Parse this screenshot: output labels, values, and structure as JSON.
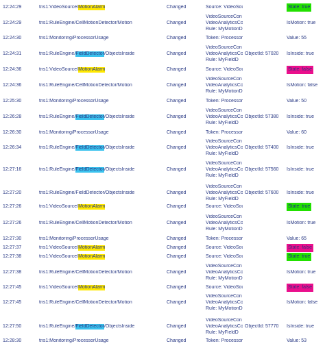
{
  "colors": {
    "text": "#2a3a85",
    "highlight_motion_alarm": "#ffe800",
    "highlight_field_detector": "#3bc2ee",
    "state_true": "#22e000",
    "state_false": "#ea0f8c"
  },
  "rows": [
    {
      "time": "12:24:29",
      "topic": [
        {
          "t": "tns1:VideoSource/"
        },
        {
          "t": "MotionAlarm",
          "hl": "yellow"
        }
      ],
      "event": "Changed",
      "source": [
        "Source: VideoSou"
      ],
      "objid": "",
      "value": "State: true",
      "badge": "green"
    },
    {
      "time": "12:24:29",
      "topic": [
        {
          "t": "tns1:RuleEngine/CellMotionDetector/Motion"
        }
      ],
      "event": "Changed",
      "source": [
        "VideoSourceCon",
        "VideoAnalyticsCo",
        "Rule: MyMotionD"
      ],
      "objid": "",
      "value": "IsMotion: true"
    },
    {
      "time": "12:24:30",
      "topic": [
        {
          "t": "tns1:Monitoring/ProcessorUsage"
        }
      ],
      "event": "Changed",
      "source": [
        "Token: Processor"
      ],
      "objid": "",
      "value": "Value: 55"
    },
    {
      "time": "12:24:31",
      "topic": [
        {
          "t": "tns1:RuleEngine/"
        },
        {
          "t": "FieldDetector",
          "hl": "blue"
        },
        {
          "t": "/ObjectsInside"
        }
      ],
      "event": "Changed",
      "source": [
        "VideoSourceCon",
        "VideoAnalyticsCo",
        "Rule: MyFieldD"
      ],
      "objid": "ObjectId: 57020",
      "value": "IsInside: true"
    },
    {
      "time": "12:24:36",
      "topic": [
        {
          "t": "tns1:VideoSource/"
        },
        {
          "t": "MotionAlarm",
          "hl": "yellow"
        }
      ],
      "event": "Changed",
      "source": [
        "Source: VideoSou"
      ],
      "objid": "",
      "value": "State: false",
      "badge": "pink"
    },
    {
      "time": "12:24:36",
      "topic": [
        {
          "t": "tns1:RuleEngine/CellMotionDetector/Motion"
        }
      ],
      "event": "Changed",
      "source": [
        "VideoSourceCon",
        "VideoAnalyticsCo",
        "Rule: MyMotionD"
      ],
      "objid": "",
      "value": "IsMotion: false"
    },
    {
      "time": "12:25:30",
      "topic": [
        {
          "t": "tns1:Monitoring/ProcessorUsage"
        }
      ],
      "event": "Changed",
      "source": [
        "Token: Processor"
      ],
      "objid": "",
      "value": "Value: 50"
    },
    {
      "time": "12:26:28",
      "topic": [
        {
          "t": "tns1:RuleEngine/"
        },
        {
          "t": "FieldDetector",
          "hl": "blue"
        },
        {
          "t": "/ObjectsInside"
        }
      ],
      "event": "Changed",
      "source": [
        "VideoSourceCon",
        "VideoAnalyticsCo",
        "Rule: MyFieldD"
      ],
      "objid": "ObjectId: 57380",
      "value": "IsInside: true"
    },
    {
      "time": "12:26:30",
      "topic": [
        {
          "t": "tns1:Monitoring/ProcessorUsage"
        }
      ],
      "event": "Changed",
      "source": [
        "Token: Processor"
      ],
      "objid": "",
      "value": "Value: 60"
    },
    {
      "time": "12:26:34",
      "topic": [
        {
          "t": "tns1:RuleEngine/"
        },
        {
          "t": "FieldDetector",
          "hl": "blue"
        },
        {
          "t": "/ObjectsInside"
        }
      ],
      "event": "Changed",
      "source": [
        "VideoSourceCon",
        "VideoAnalyticsCo",
        "Rule: MyFieldD"
      ],
      "objid": "ObjectId: 57400",
      "value": "IsInside: true"
    },
    {
      "time": "12:27:16",
      "topic": [
        {
          "t": "tns1:RuleEngine/"
        },
        {
          "t": "FieldDetector",
          "hl": "blue"
        },
        {
          "t": "/ObjectsInside"
        }
      ],
      "event": "Changed",
      "source": [
        "VideoSourceCon",
        "VideoAnalyticsCo",
        "Rule: MyFieldD"
      ],
      "objid": "ObjectId: 57560",
      "value": "IsInside: true"
    },
    {
      "time": "12:27:20",
      "topic": [
        {
          "t": "tns1:RuleEngine/FieldDetector/ObjectsInside"
        }
      ],
      "event": "Changed",
      "source": [
        "VideoSourceCon",
        "VideoAnalyticsCo",
        "Rule: MyFieldD"
      ],
      "objid": "ObjectId: 57600",
      "value": "IsInside: true"
    },
    {
      "time": "12:27:26",
      "topic": [
        {
          "t": "tns1:VideoSource/"
        },
        {
          "t": "MotionAlarm",
          "hl": "yellow"
        }
      ],
      "event": "Changed",
      "source": [
        "Source: VideoSou"
      ],
      "objid": "",
      "value": "State: true",
      "badge": "green"
    },
    {
      "time": "12:27:26",
      "topic": [
        {
          "t": "tns1:RuleEngine/CellMotionDetector/Motion"
        }
      ],
      "event": "Changed",
      "source": [
        "VideoSourceCon",
        "VideoAnalyticsCo",
        "Rule: MyMotionD"
      ],
      "objid": "",
      "value": "IsMotion: true"
    },
    {
      "time": "12:27:30",
      "topic": [
        {
          "t": "tns1:Monitoring/ProcessorUsage"
        }
      ],
      "event": "Changed",
      "source": [
        "Token: Processor"
      ],
      "objid": "",
      "value": "Value: 65"
    },
    {
      "time": "12:27:37",
      "topic": [
        {
          "t": "tns1:VideoSource/"
        },
        {
          "t": "MotionAlarm",
          "hl": "yellow"
        }
      ],
      "event": "Changed",
      "source": [
        "Source: VideoSou"
      ],
      "objid": "",
      "value": "State: false",
      "badge": "pink"
    },
    {
      "time": "12:27:38",
      "topic": [
        {
          "t": "tns1:VideoSource/"
        },
        {
          "t": "MotionAlarm",
          "hl": "yellow"
        }
      ],
      "event": "Changed",
      "source": [
        "Source: VideoSou"
      ],
      "objid": "",
      "value": "State: true",
      "badge": "green"
    },
    {
      "time": "12:27:38",
      "topic": [
        {
          "t": "tns1:RuleEngine/CellMotionDetector/Motion"
        }
      ],
      "event": "Changed",
      "source": [
        "VideoSourceCon",
        "VideoAnalyticsCo",
        "Rule: MyMotionD"
      ],
      "objid": "",
      "value": "IsMotion: true"
    },
    {
      "time": "12:27:45",
      "topic": [
        {
          "t": "tns1:VideoSource/"
        },
        {
          "t": "MotionAlarm",
          "hl": "yellow"
        }
      ],
      "event": "Changed",
      "source": [
        "Source: VideoSou"
      ],
      "objid": "",
      "value": "State: false",
      "badge": "pink"
    },
    {
      "time": "12:27:45",
      "topic": [
        {
          "t": "tns1:RuleEngine/CellMotionDetector/Motion"
        }
      ],
      "event": "Changed",
      "source": [
        "VideoSourceCon",
        "VideoAnalyticsCo",
        "Rule: MyMotionD"
      ],
      "objid": "",
      "value": "IsMotion: false"
    },
    {
      "time": "12:27:50",
      "topic": [
        {
          "t": "tns1:RuleEngine/"
        },
        {
          "t": "FieldDetector",
          "hl": "blue"
        },
        {
          "t": "/ObjectsInside"
        }
      ],
      "event": "Changed",
      "source": [
        "VideoSourceCon",
        "VideoAnalyticsCo",
        "Rule: MyFieldD"
      ],
      "objid": "ObjectId: 57770",
      "value": "IsInside: true"
    },
    {
      "time": "12:28:30",
      "topic": [
        {
          "t": "tns1:Monitoring/ProcessorUsage"
        }
      ],
      "event": "Changed",
      "source": [
        "Token: Processor"
      ],
      "objid": "",
      "value": "Value: 53"
    }
  ]
}
